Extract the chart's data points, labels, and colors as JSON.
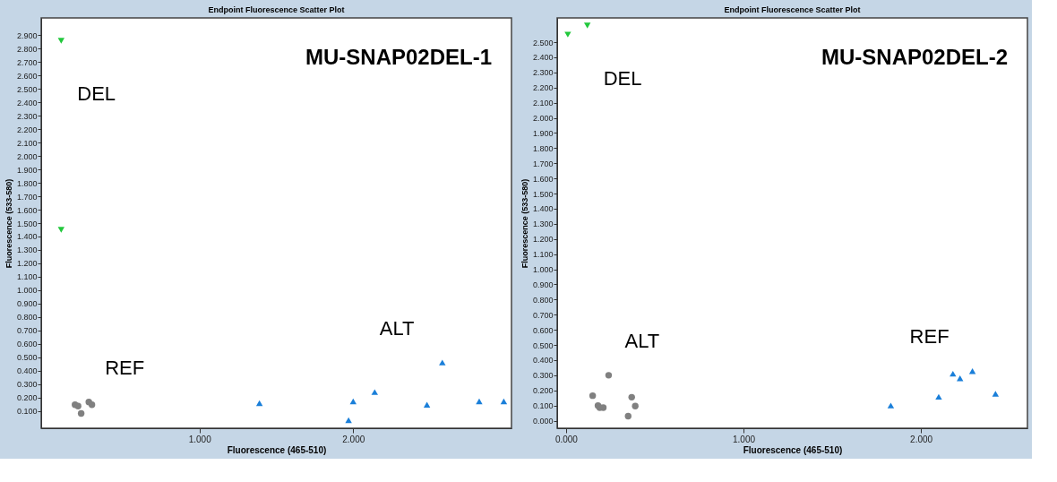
{
  "chart_data": [
    {
      "type": "scatter",
      "title": "Endpoint Fluorescence Scatter Plot",
      "subtitle": "MU-SNAP02DEL-1",
      "xlabel": "Fluorescence (465-510)",
      "ylabel": "Fluorescence (533-580)",
      "xlim": [
        -0.03,
        3.03
      ],
      "ylim": [
        -0.03,
        3.03
      ],
      "xticks": [
        {
          "value": 1,
          "label": "1.000"
        },
        {
          "value": 2,
          "label": "2.000"
        }
      ],
      "yticks": [
        {
          "value": 0.1,
          "label": "0.100"
        },
        {
          "value": 0.2,
          "label": "0.200"
        },
        {
          "value": 0.3,
          "label": "0.300"
        },
        {
          "value": 0.4,
          "label": "0.400"
        },
        {
          "value": 0.5,
          "label": "0.500"
        },
        {
          "value": 0.6,
          "label": "0.600"
        },
        {
          "value": 0.7,
          "label": "0.700"
        },
        {
          "value": 0.8,
          "label": "0.800"
        },
        {
          "value": 0.9,
          "label": "0.900"
        },
        {
          "value": 1.0,
          "label": "1.000"
        },
        {
          "value": 1.1,
          "label": "1.100"
        },
        {
          "value": 1.2,
          "label": "1.200"
        },
        {
          "value": 1.3,
          "label": "1.300"
        },
        {
          "value": 1.4,
          "label": "1.400"
        },
        {
          "value": 1.5,
          "label": "1.500"
        },
        {
          "value": 1.6,
          "label": "1.600"
        },
        {
          "value": 1.7,
          "label": "1.700"
        },
        {
          "value": 1.8,
          "label": "1.800"
        },
        {
          "value": 1.9,
          "label": "1.900"
        },
        {
          "value": 2.0,
          "label": "2.000"
        },
        {
          "value": 2.1,
          "label": "2.100"
        },
        {
          "value": 2.2,
          "label": "2.200"
        },
        {
          "value": 2.3,
          "label": "2.300"
        },
        {
          "value": 2.4,
          "label": "2.400"
        },
        {
          "value": 2.5,
          "label": "2.500"
        },
        {
          "value": 2.6,
          "label": "2.600"
        },
        {
          "value": 2.7,
          "label": "2.700"
        },
        {
          "value": 2.8,
          "label": "2.800"
        },
        {
          "value": 2.9,
          "label": "2.900"
        }
      ],
      "series": [
        {
          "color": "#22c83c",
          "marker": "triangle-down",
          "x": [
            0.1,
            0.1
          ],
          "values": [
            2.86,
            1.45
          ]
        },
        {
          "color": "#808080",
          "marker": "circle",
          "x": [
            0.19,
            0.21,
            0.23,
            0.28,
            0.3
          ],
          "values": [
            0.145,
            0.135,
            0.08,
            0.165,
            0.145
          ]
        },
        {
          "color": "#1a7fd9",
          "marker": "triangle-up",
          "x": [
            1.39,
            1.97,
            2.0,
            2.14,
            2.48,
            2.58,
            2.82,
            2.98
          ],
          "values": [
            0.157,
            0.03,
            0.17,
            0.24,
            0.145,
            0.46,
            0.17,
            0.17
          ]
        }
      ],
      "annotations": [
        "DEL",
        "REF",
        "ALT"
      ]
    },
    {
      "type": "scatter",
      "title": "Endpoint Fluorescence Scatter Plot",
      "subtitle": "MU-SNAP02DEL-2",
      "xlabel": "Fluorescence (465-510)",
      "ylabel": "Fluorescence (533-580)",
      "xlim": [
        -0.05,
        2.6
      ],
      "ylim": [
        -0.05,
        2.66
      ],
      "xticks": [
        {
          "value": 0,
          "label": "0.000"
        },
        {
          "value": 1,
          "label": "1.000"
        },
        {
          "value": 2,
          "label": "2.000"
        }
      ],
      "yticks": [
        {
          "value": 0,
          "label": "0.000"
        },
        {
          "value": 0.1,
          "label": "0.100"
        },
        {
          "value": 0.2,
          "label": "0.200"
        },
        {
          "value": 0.3,
          "label": "0.300"
        },
        {
          "value": 0.4,
          "label": "0.400"
        },
        {
          "value": 0.5,
          "label": "0.500"
        },
        {
          "value": 0.6,
          "label": "0.600"
        },
        {
          "value": 0.7,
          "label": "0.700"
        },
        {
          "value": 0.8,
          "label": "0.800"
        },
        {
          "value": 0.9,
          "label": "0.900"
        },
        {
          "value": 1.0,
          "label": "1.000"
        },
        {
          "value": 1.1,
          "label": "1.100"
        },
        {
          "value": 1.2,
          "label": "1.200"
        },
        {
          "value": 1.3,
          "label": "1.300"
        },
        {
          "value": 1.4,
          "label": "1.400"
        },
        {
          "value": 1.5,
          "label": "1.500"
        },
        {
          "value": 1.6,
          "label": "1.600"
        },
        {
          "value": 1.7,
          "label": "1.700"
        },
        {
          "value": 1.8,
          "label": "1.800"
        },
        {
          "value": 1.9,
          "label": "1.900"
        },
        {
          "value": 2.0,
          "label": "2.000"
        },
        {
          "value": 2.1,
          "label": "2.100"
        },
        {
          "value": 2.2,
          "label": "2.200"
        },
        {
          "value": 2.3,
          "label": "2.300"
        },
        {
          "value": 2.4,
          "label": "2.400"
        },
        {
          "value": 2.5,
          "label": "2.500"
        }
      ],
      "series": [
        {
          "color": "#22c83c",
          "marker": "triangle-down",
          "x": [
            0.01,
            0.12
          ],
          "values": [
            2.55,
            2.61
          ]
        },
        {
          "color": "#808080",
          "marker": "circle",
          "x": [
            0.15,
            0.18,
            0.19,
            0.21,
            0.24,
            0.35,
            0.37,
            0.39
          ],
          "values": [
            0.165,
            0.1,
            0.086,
            0.086,
            0.3,
            0.03,
            0.155,
            0.096
          ]
        },
        {
          "color": "#1a7fd9",
          "marker": "triangle-up",
          "x": [
            1.83,
            2.1,
            2.18,
            2.22,
            2.29,
            2.42
          ],
          "values": [
            0.1,
            0.158,
            0.31,
            0.28,
            0.327,
            0.178
          ]
        }
      ],
      "annotations": [
        "DEL",
        "ALT",
        "REF"
      ]
    }
  ]
}
